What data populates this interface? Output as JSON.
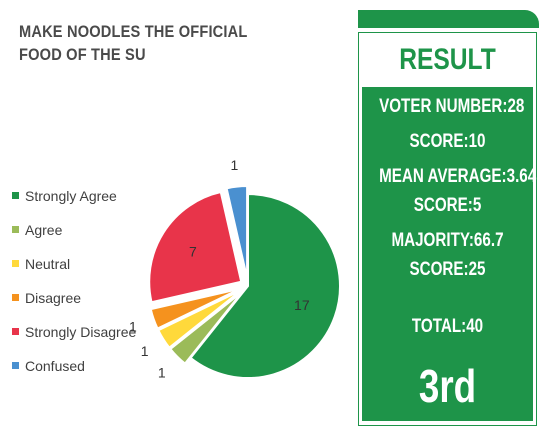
{
  "chart_data": {
    "type": "pie",
    "title": "MAKE NOODLES THE OFFICIAL FOOD OF THE SU",
    "categories": [
      "Strongly Agree",
      "Agree",
      "Neutral",
      "Disagree",
      "Strongly Disagree",
      "Confused"
    ],
    "values": [
      17,
      1,
      1,
      1,
      7,
      1
    ],
    "colors": [
      "#1e9449",
      "#9bbb59",
      "#ffd93b",
      "#f5921e",
      "#e8344a",
      "#4a90d0"
    ],
    "exploded": [
      "Agree",
      "Neutral",
      "Disagree",
      "Strongly Disagree",
      "Confused"
    ],
    "legend_position": "left"
  },
  "result": {
    "heading": "RESULT",
    "lines": [
      "VOTER NUMBER:28",
      "SCORE:10",
      "MEAN AVERAGE:3.64",
      "SCORE:5",
      "MAJORITY:66.7",
      "SCORE:25",
      "TOTAL:40"
    ],
    "rank": "3rd",
    "accent_color": "#1e9449"
  }
}
